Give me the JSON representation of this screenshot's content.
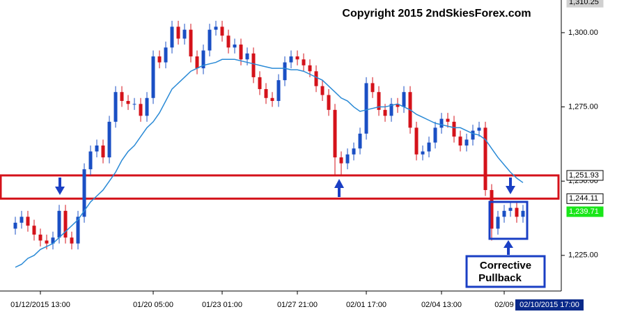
{
  "chart_data": {
    "type": "candlestick",
    "title": "Copyright 2015 2ndSkiesForex.com",
    "categories": [
      null,
      null,
      null,
      null,
      "01/12/2015 13:00",
      null,
      null,
      null,
      null,
      null,
      null,
      null,
      null,
      null,
      null,
      null,
      null,
      null,
      null,
      null,
      null,
      null,
      "01/20 05:00",
      null,
      null,
      null,
      null,
      null,
      null,
      null,
      null,
      null,
      null,
      "01/23 01:00",
      null,
      null,
      null,
      null,
      null,
      null,
      null,
      null,
      null,
      null,
      null,
      "01/27 21:00",
      null,
      null,
      null,
      null,
      null,
      null,
      null,
      null,
      null,
      null,
      "02/01 17:00",
      null,
      null,
      null,
      null,
      null,
      null,
      null,
      null,
      null,
      null,
      null,
      "02/04 13:00",
      null,
      null,
      null,
      null,
      null,
      null,
      null,
      null,
      null,
      "02/09",
      null,
      null,
      null
    ],
    "open": [
      1234,
      1236,
      1238,
      1235,
      1232,
      1230,
      1229,
      1231,
      1240,
      1231,
      1229,
      1238,
      1254,
      1260,
      1262,
      1258,
      1270,
      1280,
      1277,
      1276,
      1276,
      1272,
      1278,
      1292,
      1290,
      1295,
      1302,
      1298,
      1301,
      1292,
      1288,
      1294,
      1301,
      1302,
      1299,
      1295,
      1296,
      1291,
      1293,
      1285,
      1281,
      1278,
      1277,
      1284,
      1290,
      1292,
      1291,
      1289,
      1287,
      1282,
      1279,
      1274,
      1258,
      1256,
      1259,
      1261,
      1266,
      1283,
      1280,
      1274,
      1272,
      1276,
      1275,
      1280,
      1268,
      1259,
      1260,
      1263,
      1268,
      1271,
      1270,
      1265,
      1262,
      1264,
      1267,
      1268,
      1247,
      1234,
      1238,
      1240,
      1241,
      1238
    ],
    "high": [
      1238,
      1240,
      1240,
      1237,
      1234,
      1232,
      1233,
      1242,
      1242,
      1233,
      1240,
      1256,
      1262,
      1264,
      1264,
      1272,
      1282,
      1282,
      1279,
      1278,
      1278,
      1280,
      1294,
      1294,
      1297,
      1304,
      1304,
      1303,
      1303,
      1294,
      1296,
      1303,
      1304,
      1304,
      1301,
      1298,
      1298,
      1295,
      1295,
      1287,
      1283,
      1280,
      1286,
      1292,
      1294,
      1294,
      1293,
      1291,
      1289,
      1284,
      1281,
      1276,
      1260,
      1261,
      1263,
      1268,
      1285,
      1285,
      1282,
      1276,
      1278,
      1278,
      1282,
      1282,
      1270,
      1262,
      1265,
      1270,
      1273,
      1273,
      1272,
      1267,
      1266,
      1269,
      1270,
      1270,
      1249,
      1240,
      1242,
      1243,
      1243,
      1242
    ],
    "low": [
      1232,
      1234,
      1233,
      1230,
      1228,
      1227,
      1227,
      1229,
      1229,
      1227,
      1227,
      1236,
      1252,
      1258,
      1256,
      1256,
      1268,
      1275,
      1274,
      1274,
      1270,
      1270,
      1276,
      1288,
      1288,
      1293,
      1296,
      1296,
      1290,
      1286,
      1286,
      1292,
      1299,
      1297,
      1293,
      1293,
      1289,
      1289,
      1283,
      1279,
      1276,
      1275,
      1275,
      1282,
      1288,
      1289,
      1287,
      1285,
      1280,
      1277,
      1272,
      1252,
      1252,
      1254,
      1257,
      1259,
      1264,
      1278,
      1272,
      1270,
      1270,
      1273,
      1273,
      1266,
      1257,
      1257,
      1258,
      1261,
      1266,
      1268,
      1263,
      1260,
      1260,
      1262,
      1265,
      1245,
      1230,
      1232,
      1236,
      1238,
      1236,
      1236
    ],
    "close": [
      1236,
      1238,
      1235,
      1232,
      1230,
      1229,
      1231,
      1240,
      1231,
      1229,
      1238,
      1254,
      1260,
      1262,
      1258,
      1270,
      1280,
      1277,
      1276,
      1276,
      1272,
      1278,
      1292,
      1290,
      1295,
      1302,
      1298,
      1301,
      1292,
      1288,
      1294,
      1301,
      1302,
      1299,
      1295,
      1296,
      1291,
      1293,
      1285,
      1281,
      1278,
      1277,
      1284,
      1290,
      1292,
      1291,
      1289,
      1287,
      1282,
      1279,
      1274,
      1258,
      1256,
      1259,
      1261,
      1266,
      1283,
      1280,
      1274,
      1272,
      1276,
      1275,
      1280,
      1268,
      1259,
      1260,
      1263,
      1268,
      1271,
      1270,
      1265,
      1262,
      1264,
      1267,
      1268,
      1247,
      1234,
      1238,
      1240,
      1241,
      1238,
      1240
    ],
    "up_color": "#1a4fc4",
    "down_color": "#d4121a",
    "moving_average": {
      "color": "#2a8ad6",
      "values": [
        1221,
        1222,
        1224,
        1225,
        1227,
        1228,
        1229,
        1231,
        1233,
        1235,
        1237,
        1240,
        1243,
        1245,
        1247,
        1250,
        1253,
        1257,
        1260,
        1262,
        1265,
        1268,
        1270,
        1273,
        1277,
        1281,
        1283,
        1285,
        1287,
        1288,
        1289,
        1289.5,
        1290,
        1291,
        1291,
        1291,
        1290.5,
        1290,
        1289.5,
        1289,
        1288.5,
        1288,
        1288,
        1288,
        1287.5,
        1287.5,
        1287,
        1286,
        1285,
        1284,
        1282,
        1280,
        1278,
        1277,
        1275,
        1273.5,
        1274,
        1274.5,
        1275,
        1275,
        1275.5,
        1276,
        1275,
        1274,
        1272.5,
        1271.5,
        1270.5,
        1269.5,
        1269,
        1268.5,
        1268,
        1268,
        1267,
        1266,
        1265.5,
        1264,
        1261,
        1258,
        1255.5,
        1253,
        1251,
        1249.5
      ]
    },
    "ylim": [
      1213,
      1311
    ],
    "yticks": [
      {
        "value": 1225,
        "label": "1,225.00"
      },
      {
        "value": 1250,
        "label": "1,250.00"
      },
      {
        "value": 1275,
        "label": "1,275.00"
      },
      {
        "value": 1300,
        "label": "1,300.00"
      }
    ],
    "price_labels": [
      {
        "value": 1310.25,
        "label": "1,310.25",
        "color": "#d0d0d0"
      },
      {
        "value": 1251.93,
        "label": "1,251.93",
        "color": "#ffffff"
      },
      {
        "value": 1244.11,
        "label": "1,244.11",
        "color": "#ffffff"
      },
      {
        "value": 1239.71,
        "label": "1,239.71",
        "color": "#19e619"
      }
    ],
    "zone_color": "#d4121a",
    "cursor_label": "02/10/2015 17:00",
    "annotation": [
      "Corrective",
      "Pullback"
    ]
  }
}
